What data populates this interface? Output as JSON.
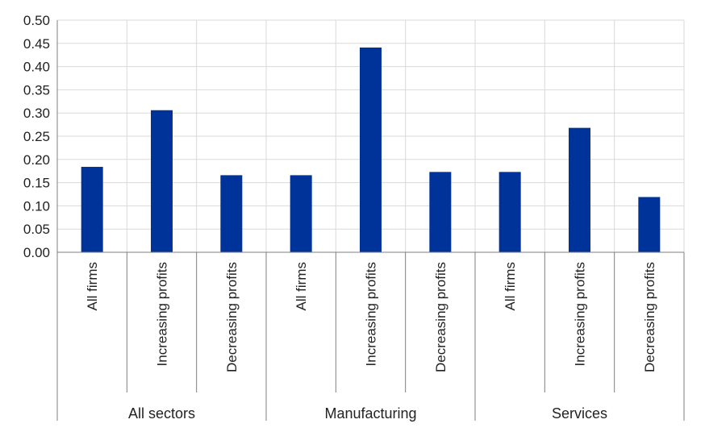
{
  "chart_data": {
    "type": "bar",
    "title": "",
    "xlabel": "",
    "ylabel": "",
    "ylim": [
      0,
      0.5
    ],
    "yticks": [
      "0.00",
      "0.05",
      "0.10",
      "0.15",
      "0.20",
      "0.25",
      "0.30",
      "0.35",
      "0.40",
      "0.45",
      "0.50"
    ],
    "grid": true,
    "bar_color": "#003399",
    "groups": [
      {
        "label": "All sectors",
        "categories": [
          "All firms",
          "Increasing profits",
          "Decreasing profits"
        ],
        "values": [
          0.184,
          0.306,
          0.166
        ]
      },
      {
        "label": "Manufacturing",
        "categories": [
          "All firms",
          "Increasing profits",
          "Decreasing profits"
        ],
        "values": [
          0.166,
          0.441,
          0.173
        ]
      },
      {
        "label": "Services",
        "categories": [
          "All firms",
          "Increasing profits",
          "Decreasing profits"
        ],
        "values": [
          0.173,
          0.268,
          0.119
        ]
      }
    ]
  }
}
